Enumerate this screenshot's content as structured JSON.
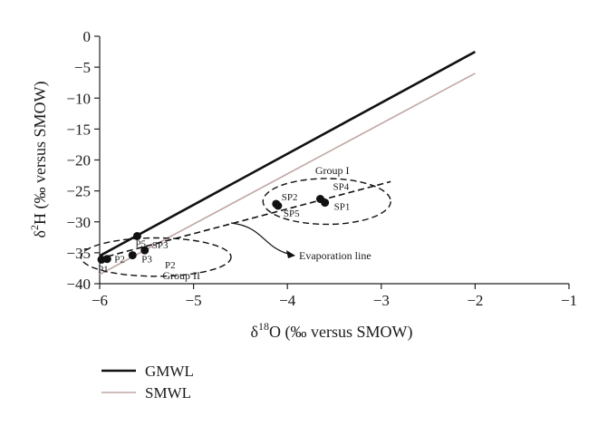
{
  "chart_data": {
    "type": "scatter",
    "title": "",
    "xlabel": {
      "prefix": "δ",
      "sup": "18",
      "main": "O (‰ versus SMOW)"
    },
    "ylabel": {
      "prefix": "δ",
      "sup": "2",
      "main": "H (‰ versus SMOW)"
    },
    "xlim": [
      -6,
      -1
    ],
    "ylim": [
      -40,
      0
    ],
    "xticks": [
      -6,
      -5,
      -4,
      -3,
      -2,
      -1
    ],
    "yticks": [
      0,
      -5,
      -10,
      -15,
      -20,
      -25,
      -30,
      -35,
      -40
    ],
    "grid": false,
    "legend_position": "bottom-left",
    "lines": [
      {
        "name": "GMWL",
        "color": "#111111",
        "x": [
          -6,
          -2
        ],
        "y": [
          -35.5,
          -2.5
        ]
      },
      {
        "name": "SMWL",
        "color": "#bfa7a3",
        "x": [
          -6,
          -2
        ],
        "y": [
          -38.5,
          -6
        ]
      }
    ],
    "evaporation_line": {
      "x": [
        -6.02,
        -2.9
      ],
      "y": [
        -36.0,
        -23.5
      ]
    },
    "points": [
      {
        "label": "P1",
        "x": -5.98,
        "y": -36.1
      },
      {
        "label": "P2",
        "x": -5.92,
        "y": -36.0
      },
      {
        "label": "P3",
        "x": -5.65,
        "y": -35.4
      },
      {
        "label": "SP3",
        "x": -5.52,
        "y": -34.6
      },
      {
        "label": "P5",
        "x": -5.6,
        "y": -32.3
      },
      {
        "label": "SP2",
        "x": -4.12,
        "y": -27.1
      },
      {
        "label": "SP5",
        "x": -4.1,
        "y": -27.4
      },
      {
        "label": "SP4",
        "x": -3.65,
        "y": -26.3
      },
      {
        "label": "SP1",
        "x": -3.6,
        "y": -26.9
      }
    ],
    "groups": [
      {
        "label": "Group I",
        "cx": -3.58,
        "cy": -26.7,
        "rx": 0.68,
        "ry": 3.7
      },
      {
        "label": "Group II",
        "cx": -5.4,
        "cy": -35.7,
        "rx": 0.8,
        "ry": 3.1
      }
    ],
    "annotations": [
      {
        "text": "Evaporation line"
      }
    ]
  }
}
